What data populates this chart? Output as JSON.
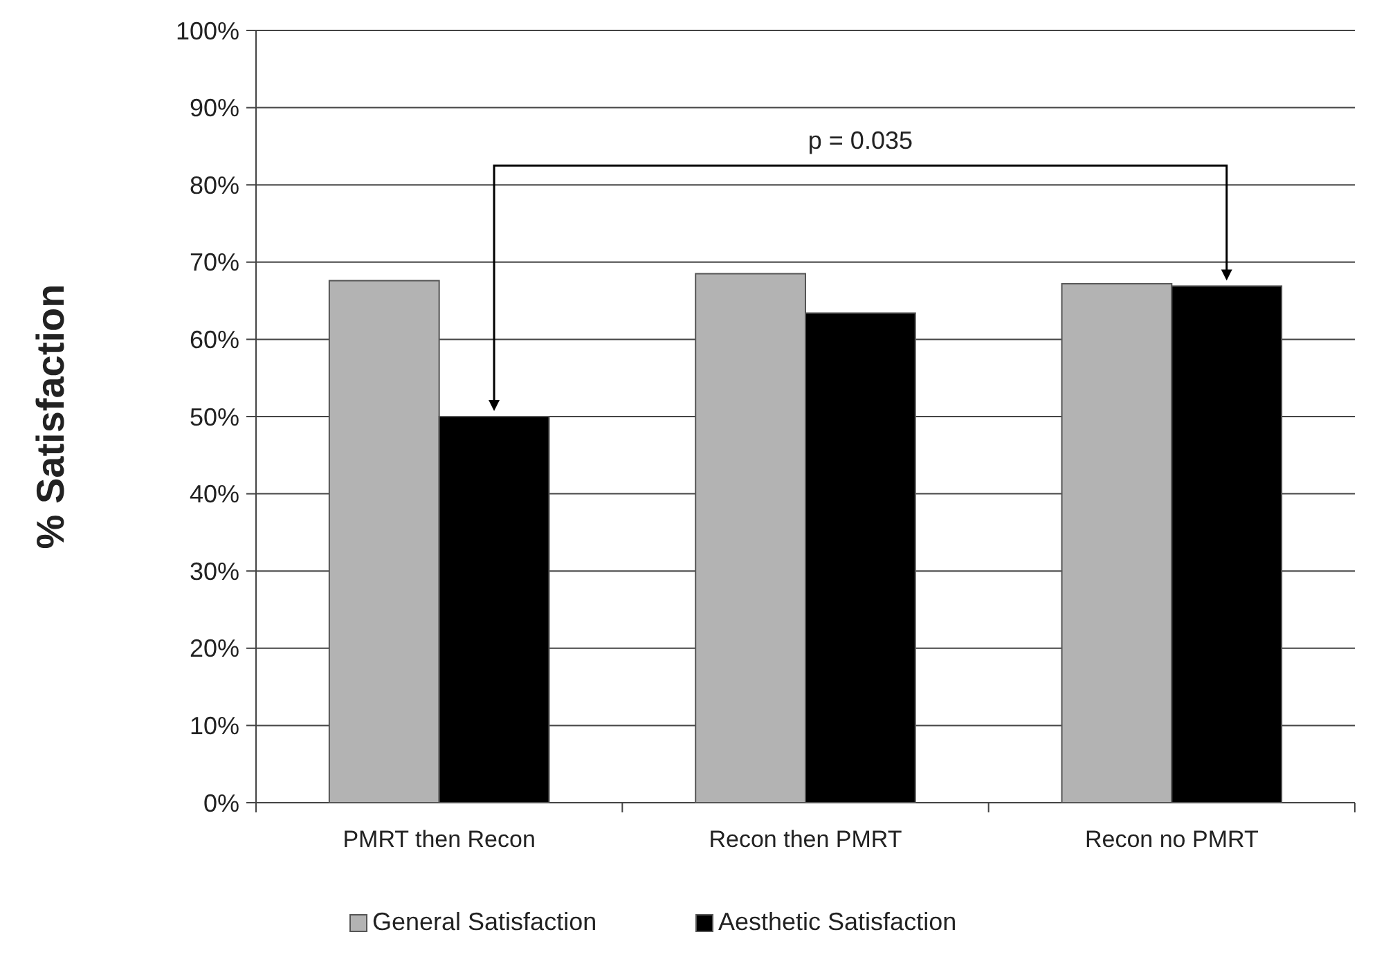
{
  "chart_data": {
    "type": "bar",
    "ylabel": "% Satisfaction",
    "categories": [
      "PMRT then Recon",
      "Recon then PMRT",
      "Recon no PMRT"
    ],
    "series": [
      {
        "name": "General Satisfaction",
        "color": "#b3b3b3",
        "values": [
          67.6,
          68.5,
          67.2
        ]
      },
      {
        "name": "Aesthetic Satisfaction",
        "color": "#000000",
        "values": [
          50,
          63.4,
          66.9
        ]
      }
    ],
    "ylim": [
      0,
      100
    ],
    "yticks": [
      {
        "value": 0,
        "label": "0%"
      },
      {
        "value": 10,
        "label": "10%"
      },
      {
        "value": 20,
        "label": "20%"
      },
      {
        "value": 30,
        "label": "30%"
      },
      {
        "value": 40,
        "label": "40%"
      },
      {
        "value": 50,
        "label": "50%"
      },
      {
        "value": 60,
        "label": "60%"
      },
      {
        "value": 70,
        "label": "70%"
      },
      {
        "value": 80,
        "label": "80%"
      },
      {
        "value": 90,
        "label": "90%"
      },
      {
        "value": 100,
        "label": "100%"
      }
    ],
    "grid": "y",
    "legend": "bottom",
    "annotations": [
      "p = 0.035"
    ]
  }
}
